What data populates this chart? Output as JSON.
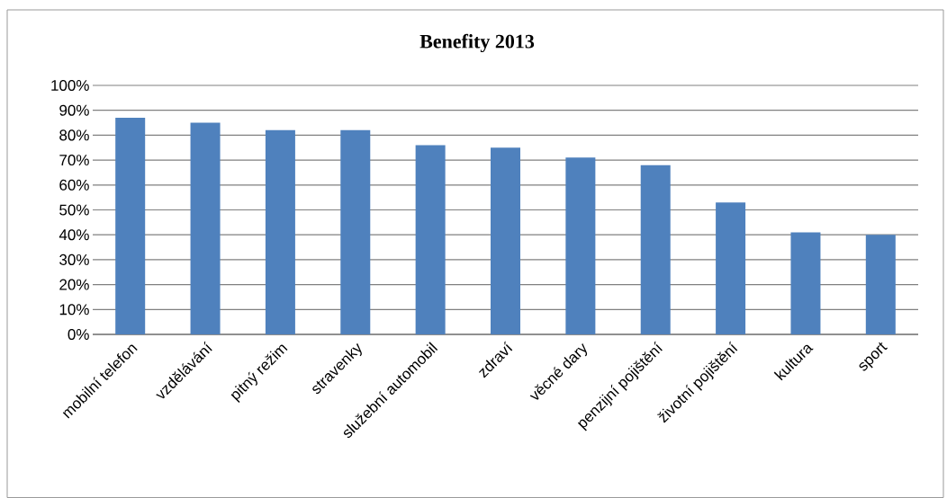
{
  "chart_data": {
    "type": "bar",
    "title": "Benefity 2013",
    "categories": [
      "mobilní telefon",
      "vzdělávání",
      "pitný režim",
      "stravenky",
      "služební automobil",
      "zdraví",
      "věcné dary",
      "penzijní pojištění",
      "životní pojištění",
      "kultura",
      "sport"
    ],
    "values": [
      87,
      85,
      82,
      82,
      76,
      75,
      71,
      68,
      53,
      41,
      40
    ],
    "color": "#4f81bd",
    "ylim": [
      0,
      100
    ],
    "yticks": [
      {
        "value": 0,
        "label": "0%"
      },
      {
        "value": 10,
        "label": "10%"
      },
      {
        "value": 20,
        "label": "20%"
      },
      {
        "value": 30,
        "label": "30%"
      },
      {
        "value": 40,
        "label": "40%"
      },
      {
        "value": 50,
        "label": "50%"
      },
      {
        "value": 60,
        "label": "60%"
      },
      {
        "value": 70,
        "label": "70%"
      },
      {
        "value": 80,
        "label": "80%"
      },
      {
        "value": 90,
        "label": "90%"
      },
      {
        "value": 100,
        "label": "100%"
      }
    ],
    "grid": "y"
  }
}
